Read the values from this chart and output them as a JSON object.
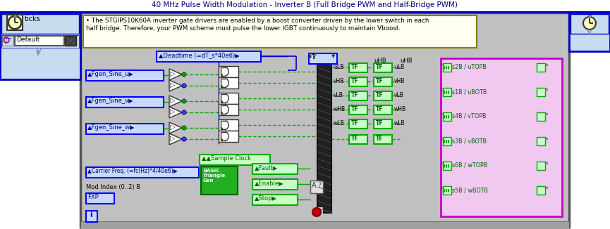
{
  "title": "40 MHz Pulse Width Modulation - Inverter B (Full Bridge PWM and Half-Bridge PWM)",
  "title_color": "#000080",
  "bg_white": "#FFFFFF",
  "bg_gray": "#C0C0C0",
  "bg_light_blue": "#C8D8F0",
  "panel_border_blue": "#0000C8",
  "info_bg": "#FFFFF0",
  "info_border": "#808000",
  "info_text_line1": "• The STGIPS10K60A inverter gate drivers are enabled by a boost converter driven by the lower switch in each",
  "info_text_line2": "half bridge. Therefore, your PWM scheme must pulse the lower IGBT continuously to maintain Vboost.",
  "deadtime_label": "▲Deadtime (=dT_s*40e6)▶",
  "sine_labels": [
    "▲Fgen_Sine_u▶",
    "▲Fgen_Sine_v▶",
    "▲Fgen_Sine_w▶"
  ],
  "carrier_label": "▲Carrier Freq. (=fc(Hz)*4/40e6)▶",
  "sample_clock_label": "▲▲Sample Clock",
  "fault_label": "▲Fault▶",
  "enable_label": "▲Enable▶",
  "stop_label": "▲Stop▶",
  "mod_index_label": "Mod Index (0..2) B",
  "fxp_label": "FXP",
  "right_labels": [
    "s2B / uTOPB",
    "s1B / uBOTB",
    "s4B / vTOPB",
    "s3B / vBOTB",
    "s6B / wTOPB",
    "s5B / wBOTB"
  ],
  "tf_label": "TF",
  "tr_label": "Tr",
  "uhb_label1": "uHB",
  "uhb_label2": "uHB",
  "left_labels": [
    "uLB",
    "vHB",
    "vLB",
    "wHB",
    "wLB"
  ],
  "right_tf_labels": [
    "uLB",
    "vHB",
    "vLB",
    "wHB",
    "wLB"
  ],
  "green_fill": "#00C800",
  "green_border": "#006400",
  "blue_fill": "#C8D8FF",
  "blue_border": "#0000FF",
  "purple_fill": "#F0C8F0",
  "purple_border": "#C800C8",
  "yellow_fill": "#FFFFC0",
  "dark_bus": "#202020",
  "wire_green": "#00AA00",
  "wire_blue": "#0000C8",
  "ticks_bg": "#C8DCF0",
  "clock_face": "#FFFFC0",
  "basic_green": "#00A000",
  "white": "#FFFFFF",
  "black": "#000000",
  "gray_border": "#606060"
}
